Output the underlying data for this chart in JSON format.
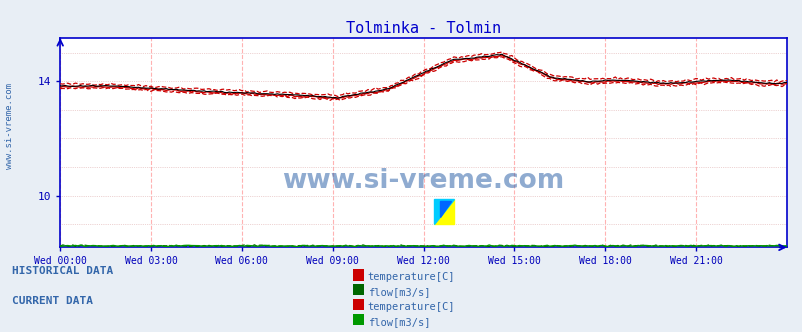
{
  "title": "Tolminka - Tolmin",
  "title_color": "#0000cc",
  "bg_color": "#e8eef5",
  "plot_bg_color": "#ffffff",
  "yticks": [
    10,
    14
  ],
  "ylim": [
    8.2,
    15.5
  ],
  "xlim": [
    0,
    288
  ],
  "xtick_positions": [
    0,
    36,
    72,
    108,
    144,
    180,
    216,
    252
  ],
  "xtick_labels": [
    "Wed 00:00",
    "Wed 03:00",
    "Wed 06:00",
    "Wed 09:00",
    "Wed 12:00",
    "Wed 15:00",
    "Wed 18:00",
    "Wed 21:00"
  ],
  "axis_color": "#0000cc",
  "tick_color": "#0000bb",
  "grid_color_v": "#ffaaaa",
  "grid_color_h": "#ddaaaa",
  "watermark": "www.si-vreme.com",
  "watermark_color": "#3366aa",
  "hist_temp_color": "#cc0000",
  "hist_flow_color": "#006600",
  "curr_temp_color": "#cc0000",
  "curr_flow_color": "#009900",
  "legend_text_color": "#3366aa",
  "legend_label_color": "#3366aa",
  "hist_label": "HISTORICAL DATA",
  "curr_label": "CURRENT DATA",
  "temp_label": "temperature[C]",
  "flow_label": "flow[m3/s]",
  "sidebar_text": "www.si-vreme.com",
  "sidebar_color": "#3366aa",
  "logo_yellow": "#ffff00",
  "logo_blue": "#0066ff",
  "logo_cyan": "#00ccff"
}
